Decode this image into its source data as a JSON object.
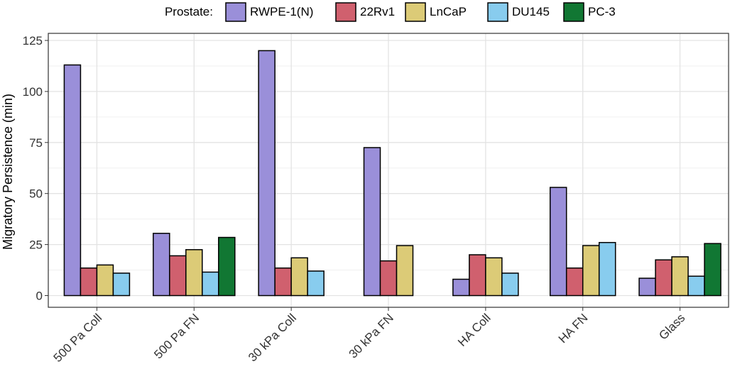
{
  "chart_data": {
    "type": "bar",
    "title": "",
    "xlabel": "",
    "ylabel": "Migratory Persistence (min)",
    "legend_title": "Prostate:",
    "legend_position": "top",
    "grid": true,
    "ylim": [
      0,
      125
    ],
    "yticks": [
      0,
      25,
      50,
      75,
      100,
      125
    ],
    "categories": [
      "500 Pa Coll",
      "500 Pa FN",
      "30 kPa Coll",
      "30 kPa FN",
      "HA Coll",
      "HA FN",
      "Glass"
    ],
    "series": [
      {
        "name": "RWPE-1(N)",
        "color": "#9a8fd9",
        "values": [
          113,
          30.5,
          120,
          72.5,
          8,
          53,
          8.5
        ]
      },
      {
        "name": "22Rv1",
        "color": "#d0606e",
        "values": [
          13.5,
          19.5,
          13.5,
          17,
          20,
          13.5,
          17.5
        ]
      },
      {
        "name": "LnCaP",
        "color": "#dccb77",
        "values": [
          15,
          22.5,
          18.5,
          24.5,
          18.5,
          24.5,
          19
        ]
      },
      {
        "name": "DU145",
        "color": "#88ccee",
        "values": [
          11,
          11.5,
          12,
          null,
          11,
          26,
          9.5
        ]
      },
      {
        "name": "PC-3",
        "color": "#117733",
        "values": [
          null,
          28.5,
          null,
          null,
          null,
          null,
          25.5
        ]
      }
    ]
  }
}
